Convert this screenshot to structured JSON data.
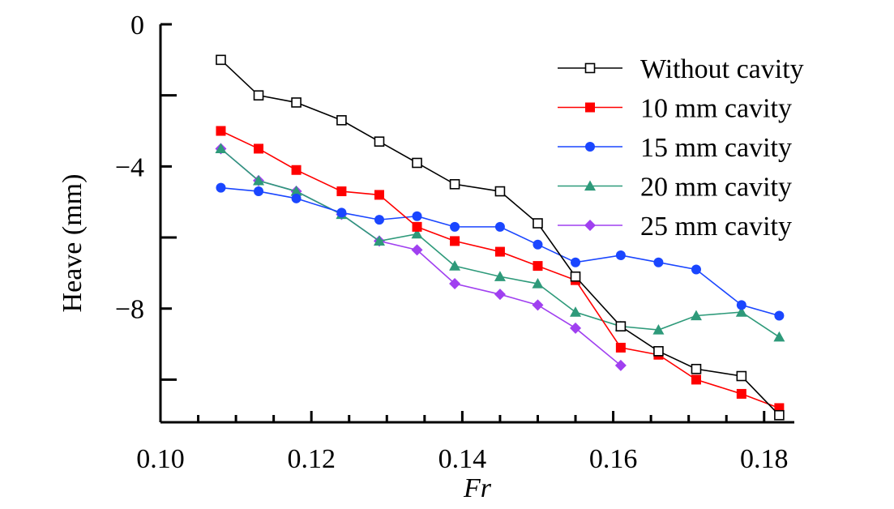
{
  "chart_data": {
    "type": "line",
    "xlabel": "Fr",
    "ylabel": "Heave (mm)",
    "xlim": [
      0.1,
      0.184
    ],
    "ylim": [
      -11.2,
      0
    ],
    "x_ticks": [
      0.1,
      0.12,
      0.14,
      0.16,
      0.18
    ],
    "x_tick_labels": [
      "0.10",
      "0.12",
      "0.14",
      "0.16",
      "0.18"
    ],
    "y_ticks": [
      0,
      -4,
      -8
    ],
    "y_tick_labels": [
      "0",
      "−4",
      "−8"
    ],
    "y_minor_ticks": [
      -2,
      -6,
      -10
    ],
    "x_minor_ticks": [
      0.105,
      0.11,
      0.115,
      0.125,
      0.13,
      0.135,
      0.145,
      0.15,
      0.155,
      0.165,
      0.17,
      0.175
    ],
    "legend_position": "top-right",
    "x": [
      0.108,
      0.113,
      0.118,
      0.124,
      0.129,
      0.134,
      0.139,
      0.145,
      0.15,
      0.155,
      0.161,
      0.166,
      0.171,
      0.177,
      0.182
    ],
    "series": [
      {
        "name": "Without cavity",
        "color": "#000000",
        "marker": "open-square",
        "values": [
          -1.0,
          -2.0,
          -2.2,
          -2.7,
          -3.3,
          -3.9,
          -4.5,
          -4.7,
          -5.6,
          -7.1,
          -8.5,
          -9.2,
          -9.7,
          -9.9,
          -11.0
        ]
      },
      {
        "name": "10 mm cavity",
        "color": "#ff0000",
        "marker": "filled-square",
        "values": [
          -3.0,
          -3.5,
          -4.1,
          -4.7,
          -4.8,
          -5.7,
          -6.1,
          -6.4,
          -6.8,
          -7.2,
          -9.1,
          -9.3,
          -10.0,
          -10.4,
          -10.8
        ]
      },
      {
        "name": "15 mm cavity",
        "color": "#1a46ff",
        "marker": "filled-circle",
        "values": [
          -4.6,
          -4.7,
          -4.9,
          -5.3,
          -5.5,
          -5.4,
          -5.7,
          -5.7,
          -6.2,
          -6.7,
          -6.5,
          -6.7,
          -6.9,
          -7.9,
          -8.2
        ]
      },
      {
        "name": "20 mm cavity",
        "color": "#2e9a7a",
        "marker": "filled-triangle",
        "values": [
          -3.5,
          -4.4,
          -4.7,
          -5.35,
          -6.1,
          -5.9,
          -6.8,
          -7.1,
          -7.3,
          -8.1,
          -8.5,
          -8.6,
          -8.2,
          -8.1,
          -8.8
        ]
      },
      {
        "name": "25 mm cavity",
        "color": "#a040f0",
        "marker": "filled-diamond",
        "values": [
          -3.5,
          -4.4,
          -4.7,
          -5.35,
          -6.1,
          -6.35,
          -7.3,
          -7.6,
          -7.9,
          -8.55,
          -9.6,
          null,
          null,
          null,
          null
        ]
      }
    ]
  }
}
